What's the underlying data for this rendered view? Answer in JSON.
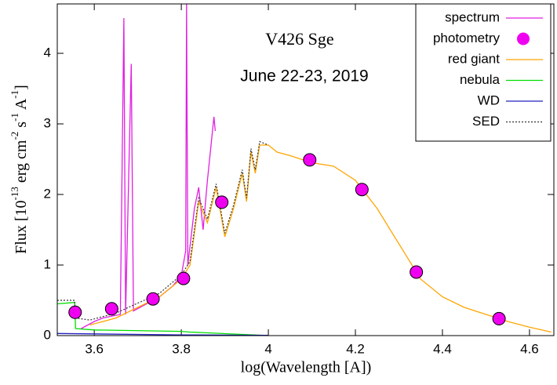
{
  "chart_data": {
    "type": "line",
    "title": "V426 Sge",
    "subtitle": "June 22-23, 2019",
    "xlabel": "log(Wavelength [A])",
    "ylabel": [
      "Flux [10",
      "-13",
      " erg cm",
      "-2",
      " s",
      "-1",
      " A",
      "-1",
      "]"
    ],
    "xlim": [
      3.515,
      4.656
    ],
    "ylim": [
      0,
      4.7
    ],
    "xticks": [
      3.6,
      3.8,
      4,
      4.2,
      4.4,
      4.6
    ],
    "yticks": [
      0,
      1,
      2,
      3,
      4
    ],
    "legend": "upper right",
    "series": [
      {
        "name": "spectrum",
        "color": "#e020e0",
        "style": "line",
        "x": [
          3.57,
          3.6,
          3.62,
          3.66,
          3.668,
          3.672,
          3.685,
          3.69,
          3.72,
          3.75,
          3.78,
          3.8,
          3.81,
          3.812,
          3.815,
          3.83,
          3.84,
          3.85,
          3.86,
          3.875,
          3.878
        ],
        "values": [
          0.1,
          0.2,
          0.25,
          0.3,
          4.5,
          0.3,
          3.85,
          0.35,
          0.45,
          0.55,
          0.7,
          0.85,
          1.2,
          4.7,
          1.0,
          1.8,
          2.1,
          1.5,
          2.2,
          3.1,
          2.9
        ]
      },
      {
        "name": "photometry",
        "color": "#f000f0",
        "style": "points",
        "x": [
          3.556,
          3.64,
          3.735,
          3.805,
          3.893,
          4.095,
          4.215,
          4.34,
          4.53
        ],
        "values": [
          0.33,
          0.38,
          0.52,
          0.81,
          1.89,
          2.49,
          2.07,
          0.9,
          0.24
        ]
      },
      {
        "name": "red giant",
        "color": "#ffa500",
        "style": "line",
        "x": [
          3.59,
          3.65,
          3.7,
          3.75,
          3.8,
          3.82,
          3.84,
          3.86,
          3.88,
          3.9,
          3.92,
          3.94,
          3.95,
          3.96,
          3.97,
          3.98,
          4.0,
          4.02,
          4.05,
          4.1,
          4.15,
          4.2,
          4.25,
          4.3,
          4.35,
          4.4,
          4.45,
          4.5,
          4.55,
          4.6,
          4.65
        ],
        "values": [
          0.15,
          0.25,
          0.4,
          0.55,
          0.8,
          1.0,
          1.9,
          1.6,
          2.1,
          1.4,
          1.8,
          2.3,
          1.9,
          2.6,
          2.3,
          2.7,
          2.7,
          2.6,
          2.55,
          2.45,
          2.4,
          2.2,
          1.8,
          1.3,
          0.8,
          0.55,
          0.4,
          0.3,
          0.2,
          0.12,
          0.05
        ]
      },
      {
        "name": "nebula",
        "color": "#00dd00",
        "style": "line",
        "x": [
          3.515,
          3.555,
          3.557,
          3.6,
          3.8,
          3.82,
          4.0
        ],
        "values": [
          0.45,
          0.47,
          0.1,
          0.08,
          0.06,
          0.05,
          0.0
        ]
      },
      {
        "name": "WD",
        "color": "#2020c0",
        "style": "line",
        "x": [
          3.515,
          3.8,
          4.0
        ],
        "values": [
          0.03,
          0.01,
          0.005
        ]
      },
      {
        "name": "SED",
        "color": "#333333",
        "style": "dotted",
        "x": [
          3.515,
          3.555,
          3.557,
          3.59,
          3.65,
          3.7,
          3.75,
          3.8,
          3.82,
          3.84,
          3.86,
          3.88,
          3.9,
          3.92,
          3.94,
          3.95,
          3.96,
          3.97,
          3.98,
          4.0
        ],
        "values": [
          0.5,
          0.5,
          0.25,
          0.22,
          0.32,
          0.46,
          0.6,
          0.86,
          1.05,
          1.95,
          1.65,
          2.15,
          1.45,
          1.85,
          2.35,
          1.95,
          2.65,
          2.35,
          2.75,
          2.7
        ]
      }
    ]
  }
}
